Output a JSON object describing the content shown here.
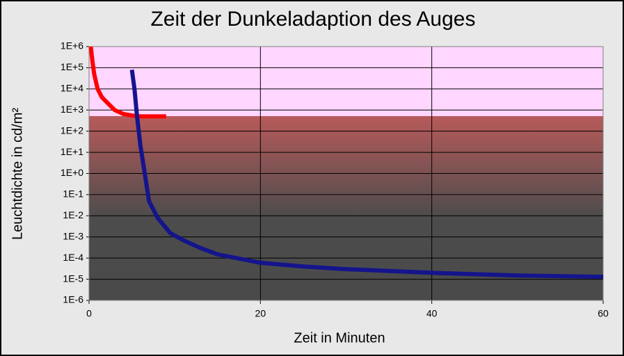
{
  "chart_data": {
    "type": "line",
    "title": "Zeit der Dunkeladaption des Auges",
    "xlabel": "Zeit in Minuten",
    "ylabel": "Leuchtdichte in cd/m²",
    "xlim": [
      0,
      60
    ],
    "xticks": [
      0,
      20,
      40,
      60
    ],
    "ylim": [
      1e-06,
      1000000
    ],
    "ylog": true,
    "grid": true,
    "yticks": [
      {
        "value": 1e-06,
        "label": "1E-6"
      },
      {
        "value": 1e-05,
        "label": "1E-5"
      },
      {
        "value": 0.0001,
        "label": "1E-4"
      },
      {
        "value": 0.001,
        "label": "1E-3"
      },
      {
        "value": 0.01,
        "label": "1E-2"
      },
      {
        "value": 0.1,
        "label": "1E-1"
      },
      {
        "value": 1,
        "label": "1E+0"
      },
      {
        "value": 10,
        "label": "1E+1"
      },
      {
        "value": 100,
        "label": "1E+2"
      },
      {
        "value": 1000,
        "label": "1E+3"
      },
      {
        "value": 10000,
        "label": "1E+4"
      },
      {
        "value": 100000,
        "label": "1E+5"
      },
      {
        "value": 1000000,
        "label": "1E+6"
      }
    ],
    "series": [
      {
        "color": "#ff0000",
        "x": [
          0.2,
          0.4,
          0.6,
          1,
          1.5,
          2,
          3,
          4,
          5,
          6,
          7,
          8,
          9
        ],
        "values": [
          1000000,
          200000,
          50000,
          10000,
          4000,
          2500,
          1000,
          650,
          550,
          500,
          500,
          500,
          500
        ]
      },
      {
        "color": "#14148c",
        "x": [
          5,
          5.3,
          5.6,
          6,
          6.5,
          7,
          8,
          9.5,
          11,
          13,
          15,
          20,
          25,
          30,
          40,
          50,
          60
        ],
        "values": [
          80000,
          10000,
          500,
          20,
          1,
          0.05,
          0.008,
          0.0015,
          0.0007,
          0.0003,
          0.00015,
          6e-05,
          4e-05,
          3e-05,
          2e-05,
          1.5e-05,
          1.3e-05
        ]
      }
    ]
  }
}
